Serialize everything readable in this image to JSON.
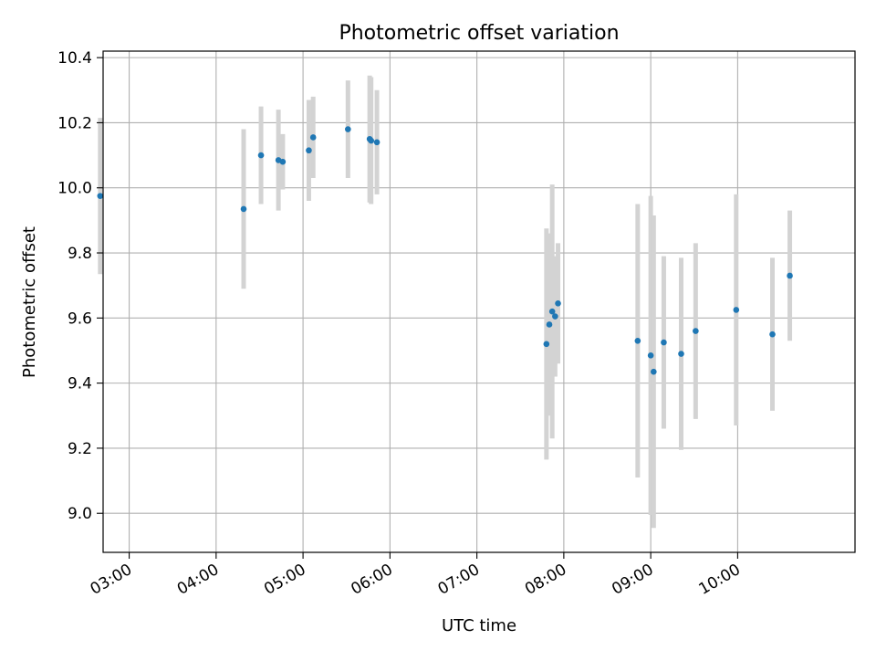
{
  "chart_data": {
    "type": "scatter",
    "title": "Photometric offset variation",
    "xlabel": "UTC time",
    "ylabel": "Photometric offset",
    "grid": true,
    "xlim": [
      "02:42",
      "11:21"
    ],
    "ylim": [
      8.88,
      10.42
    ],
    "x_ticks": [
      "03:00",
      "04:00",
      "05:00",
      "06:00",
      "07:00",
      "08:00",
      "09:00",
      "10:00"
    ],
    "y_ticks": [
      9.0,
      9.2,
      9.4,
      9.6,
      9.8,
      10.0,
      10.2,
      10.4
    ],
    "y_tick_labels": [
      "9.0",
      "9.2",
      "9.4",
      "9.6",
      "9.8",
      "10.0",
      "10.2",
      "10.4"
    ],
    "colors": {
      "point": "#1f77b4",
      "errorbar": "#d3d3d3",
      "grid": "#b0b0b0"
    },
    "series": [
      {
        "x": [
          "02:40",
          "04:19",
          "04:31",
          "04:43",
          "04:46",
          "05:04",
          "05:07",
          "05:31",
          "05:46",
          "05:47",
          "05:51",
          "07:48",
          "07:50",
          "07:52",
          "07:54",
          "07:56",
          "08:51",
          "09:00",
          "09:02",
          "09:09",
          "09:21",
          "09:31",
          "09:59",
          "10:24",
          "10:36"
        ],
        "y": [
          9.975,
          9.935,
          10.1,
          10.085,
          10.08,
          10.115,
          10.155,
          10.18,
          10.15,
          10.145,
          10.14,
          9.52,
          9.58,
          9.62,
          9.605,
          9.645,
          9.53,
          9.485,
          9.435,
          9.525,
          9.49,
          9.56,
          9.625,
          9.55,
          9.73
        ],
        "err": [
          0.24,
          0.245,
          0.15,
          0.155,
          0.085,
          0.155,
          0.125,
          0.15,
          0.195,
          0.195,
          0.16,
          0.355,
          0.28,
          0.39,
          0.185,
          0.185,
          0.42,
          0.49,
          0.48,
          0.265,
          0.295,
          0.27,
          0.355,
          0.235,
          0.2
        ]
      }
    ]
  }
}
